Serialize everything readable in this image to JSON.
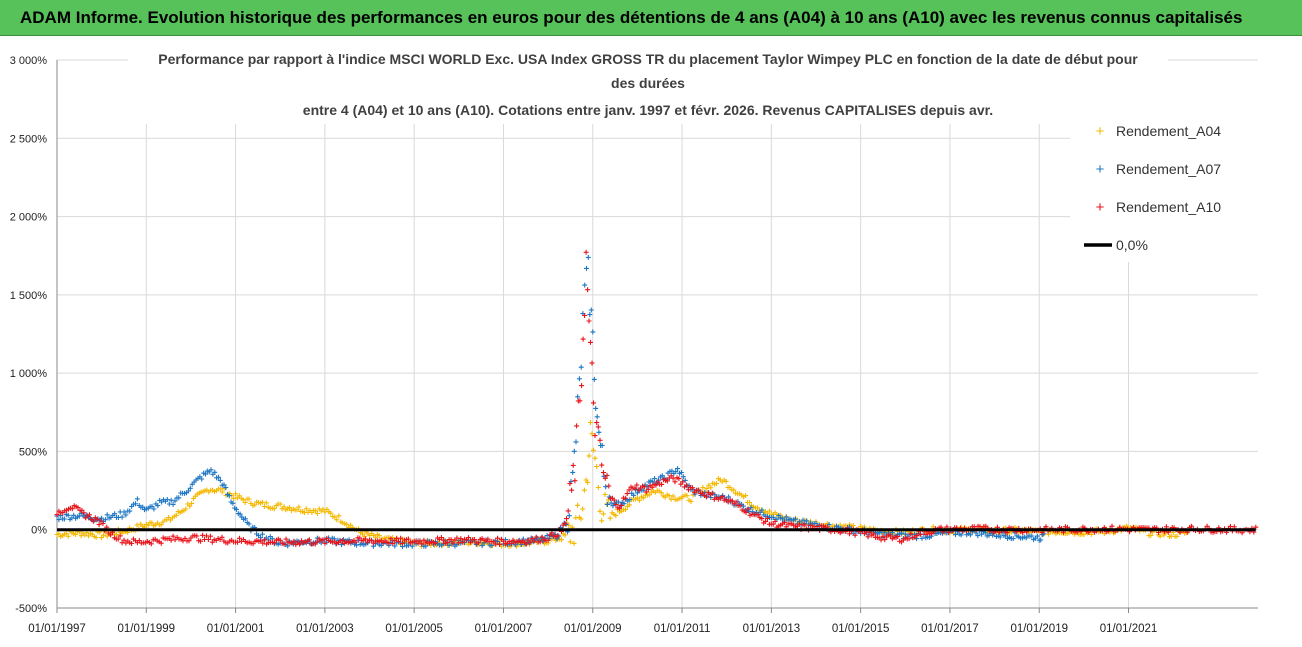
{
  "banner": {
    "title": "ADAM Informe. Evolution historique des performances en euros pour des détentions de 4 ans (A04) à 10 ans (A10) avec les revenus connus capitalisés"
  },
  "colors": {
    "banner_bg": "#57c15a",
    "A04": "#f5b800",
    "A07": "#1f77c4",
    "A10": "#e8141b",
    "zero": "#000000",
    "grid": "#d9d9d9"
  },
  "chart_data": {
    "type": "scatter",
    "title_lines": [
      "Performance par rapport à l'indice MSCI WORLD Exc. USA Index GROSS TR  du placement Taylor Wimpey PLC en fonction de la date de début pour",
      "des durées",
      "entre 4 (A04) et 10 ans (A10). Cotations entre janv. 1997 et févr. 2026. Revenus CAPITALISES depuis avr."
    ],
    "y_unit": "%",
    "ylim": [
      -500,
      3000
    ],
    "y_ticks": [
      -500,
      0,
      500,
      1000,
      1500,
      2000,
      2500,
      3000
    ],
    "y_tick_labels": [
      "-500%",
      "0%",
      "500%",
      "1 000%",
      "1 500%",
      "2 000%",
      "2 500%",
      "3 000%"
    ],
    "xlim": [
      1997.0,
      2023.9
    ],
    "x_ticks": [
      1997,
      1999,
      2001,
      2003,
      2005,
      2007,
      2009,
      2011,
      2013,
      2015,
      2017,
      2019,
      2021
    ],
    "x_tick_labels": [
      "01/01/1997",
      "01/01/1999",
      "01/01/2001",
      "01/01/2003",
      "01/01/2005",
      "01/01/2007",
      "01/01/2009",
      "01/01/2011",
      "01/01/2013",
      "01/01/2015",
      "01/01/2017",
      "01/01/2019",
      "01/01/2021"
    ],
    "legend": [
      "Rendement_A04",
      "Rendement_A07",
      "Rendement_A10",
      "0,0%"
    ],
    "legend_position": "top-right",
    "series": [
      {
        "name": "Rendement_A04",
        "color": "#f5b800",
        "points": [
          [
            1997.0,
            -30
          ],
          [
            1997.5,
            -20
          ],
          [
            1998.0,
            -35
          ],
          [
            1998.5,
            -10
          ],
          [
            1999.0,
            30
          ],
          [
            1999.5,
            60
          ],
          [
            1999.8,
            120
          ],
          [
            2000.1,
            200
          ],
          [
            2000.4,
            260
          ],
          [
            2000.7,
            250
          ],
          [
            2001.0,
            210
          ],
          [
            2001.3,
            180
          ],
          [
            2001.6,
            160
          ],
          [
            2002.0,
            150
          ],
          [
            2002.5,
            130
          ],
          [
            2003.0,
            120
          ],
          [
            2003.4,
            60
          ],
          [
            2003.8,
            -20
          ],
          [
            2004.3,
            -60
          ],
          [
            2005.0,
            -90
          ],
          [
            2005.5,
            -85
          ],
          [
            2006.0,
            -80
          ],
          [
            2006.5,
            -80
          ],
          [
            2007.0,
            -90
          ],
          [
            2007.5,
            -85
          ],
          [
            2008.0,
            -70
          ],
          [
            2008.3,
            -50
          ],
          [
            2008.5,
            -20
          ],
          [
            2008.7,
            50
          ],
          [
            2008.85,
            300
          ],
          [
            2008.95,
            600
          ],
          [
            2009.05,
            450
          ],
          [
            2009.2,
            150
          ],
          [
            2009.35,
            80
          ],
          [
            2009.6,
            120
          ],
          [
            2010.0,
            200
          ],
          [
            2010.4,
            250
          ],
          [
            2010.8,
            210
          ],
          [
            2011.2,
            200
          ],
          [
            2011.6,
            280
          ],
          [
            2011.9,
            320
          ],
          [
            2012.2,
            250
          ],
          [
            2012.6,
            160
          ],
          [
            2013.0,
            100
          ],
          [
            2013.5,
            60
          ],
          [
            2014.0,
            40
          ],
          [
            2014.5,
            20
          ],
          [
            2015.0,
            5
          ],
          [
            2015.5,
            -10
          ],
          [
            2016.0,
            -20
          ],
          [
            2016.5,
            0
          ],
          [
            2017.0,
            -5
          ],
          [
            2017.5,
            0
          ],
          [
            2018.0,
            -10
          ],
          [
            2018.5,
            -5
          ],
          [
            2019.0,
            -15
          ],
          [
            2019.5,
            -10
          ],
          [
            2020.0,
            -15
          ],
          [
            2020.5,
            -10
          ],
          [
            2021.0,
            10
          ],
          [
            2021.5,
            -20
          ],
          [
            2022.0,
            -30
          ],
          [
            2022.3,
            -20
          ]
        ]
      },
      {
        "name": "Rendement_A07",
        "color": "#1f77c4",
        "points": [
          [
            1997.0,
            80
          ],
          [
            1997.5,
            90
          ],
          [
            1998.0,
            70
          ],
          [
            1998.5,
            100
          ],
          [
            1998.8,
            180
          ],
          [
            1999.0,
            120
          ],
          [
            1999.3,
            170
          ],
          [
            1999.6,
            180
          ],
          [
            1999.9,
            250
          ],
          [
            2000.2,
            330
          ],
          [
            2000.45,
            380
          ],
          [
            2000.7,
            300
          ],
          [
            2000.9,
            180
          ],
          [
            2001.1,
            100
          ],
          [
            2001.3,
            20
          ],
          [
            2001.6,
            -40
          ],
          [
            2002.0,
            -90
          ],
          [
            2002.5,
            -75
          ],
          [
            2003.0,
            -70
          ],
          [
            2003.5,
            -80
          ],
          [
            2004.0,
            -85
          ],
          [
            2005.0,
            -90
          ],
          [
            2006.0,
            -85
          ],
          [
            2007.0,
            -80
          ],
          [
            2007.8,
            -70
          ],
          [
            2008.2,
            -40
          ],
          [
            2008.4,
            50
          ],
          [
            2008.55,
            300
          ],
          [
            2008.7,
            900
          ],
          [
            2008.82,
            1500
          ],
          [
            2008.9,
            1620
          ],
          [
            2009.0,
            1200
          ],
          [
            2009.1,
            700
          ],
          [
            2009.25,
            350
          ],
          [
            2009.45,
            150
          ],
          [
            2009.7,
            180
          ],
          [
            2010.0,
            250
          ],
          [
            2010.3,
            300
          ],
          [
            2010.6,
            330
          ],
          [
            2010.9,
            390
          ],
          [
            2011.2,
            250
          ],
          [
            2011.6,
            220
          ],
          [
            2012.0,
            200
          ],
          [
            2012.5,
            130
          ],
          [
            2013.0,
            90
          ],
          [
            2013.5,
            50
          ],
          [
            2014.0,
            30
          ],
          [
            2014.5,
            10
          ],
          [
            2015.0,
            -10
          ],
          [
            2015.5,
            -30
          ],
          [
            2016.0,
            -40
          ],
          [
            2016.5,
            -35
          ],
          [
            2017.0,
            -20
          ],
          [
            2017.5,
            -15
          ],
          [
            2018.0,
            -30
          ],
          [
            2018.5,
            -40
          ],
          [
            2019.0,
            -50
          ],
          [
            2019.1,
            -45
          ]
        ]
      },
      {
        "name": "Rendement_A10",
        "color": "#e8141b",
        "points": [
          [
            1997.0,
            110
          ],
          [
            1997.3,
            150
          ],
          [
            1997.6,
            100
          ],
          [
            1997.9,
            60
          ],
          [
            1998.2,
            -20
          ],
          [
            1998.5,
            -70
          ],
          [
            1998.8,
            -80
          ],
          [
            1999.2,
            -70
          ],
          [
            2000.0,
            -50
          ],
          [
            2001.0,
            -70
          ],
          [
            2002.0,
            -80
          ],
          [
            2003.0,
            -75
          ],
          [
            2004.0,
            -70
          ],
          [
            2005.0,
            -75
          ],
          [
            2006.0,
            -65
          ],
          [
            2007.0,
            -75
          ],
          [
            2007.6,
            -70
          ],
          [
            2008.0,
            -50
          ],
          [
            2008.3,
            -10
          ],
          [
            2008.45,
            100
          ],
          [
            2008.6,
            400
          ],
          [
            2008.75,
            1000
          ],
          [
            2008.85,
            1720
          ],
          [
            2008.95,
            1100
          ],
          [
            2009.05,
            700
          ],
          [
            2009.2,
            400
          ],
          [
            2009.4,
            200
          ],
          [
            2009.6,
            150
          ],
          [
            2009.9,
            280
          ],
          [
            2010.2,
            260
          ],
          [
            2010.5,
            300
          ],
          [
            2010.8,
            330
          ],
          [
            2011.1,
            280
          ],
          [
            2011.5,
            230
          ],
          [
            2011.9,
            200
          ],
          [
            2012.3,
            150
          ],
          [
            2012.7,
            80
          ],
          [
            2013.0,
            40
          ],
          [
            2013.5,
            20
          ],
          [
            2014.0,
            10
          ],
          [
            2014.5,
            0
          ],
          [
            2015.0,
            -20
          ],
          [
            2015.5,
            -50
          ],
          [
            2016.0,
            -60
          ],
          [
            2016.3,
            -20
          ],
          [
            2016.8,
            0
          ],
          [
            2017.5,
            5
          ],
          [
            2018.5,
            0
          ],
          [
            2019.5,
            0
          ],
          [
            2020.5,
            5
          ],
          [
            2021.5,
            0
          ],
          [
            2022.5,
            5
          ],
          [
            2023.5,
            0
          ],
          [
            2023.85,
            0
          ]
        ]
      },
      {
        "name": "0,0%",
        "color": "#000000",
        "points": [
          [
            1997.0,
            0
          ],
          [
            2023.85,
            0
          ]
        ]
      }
    ]
  }
}
